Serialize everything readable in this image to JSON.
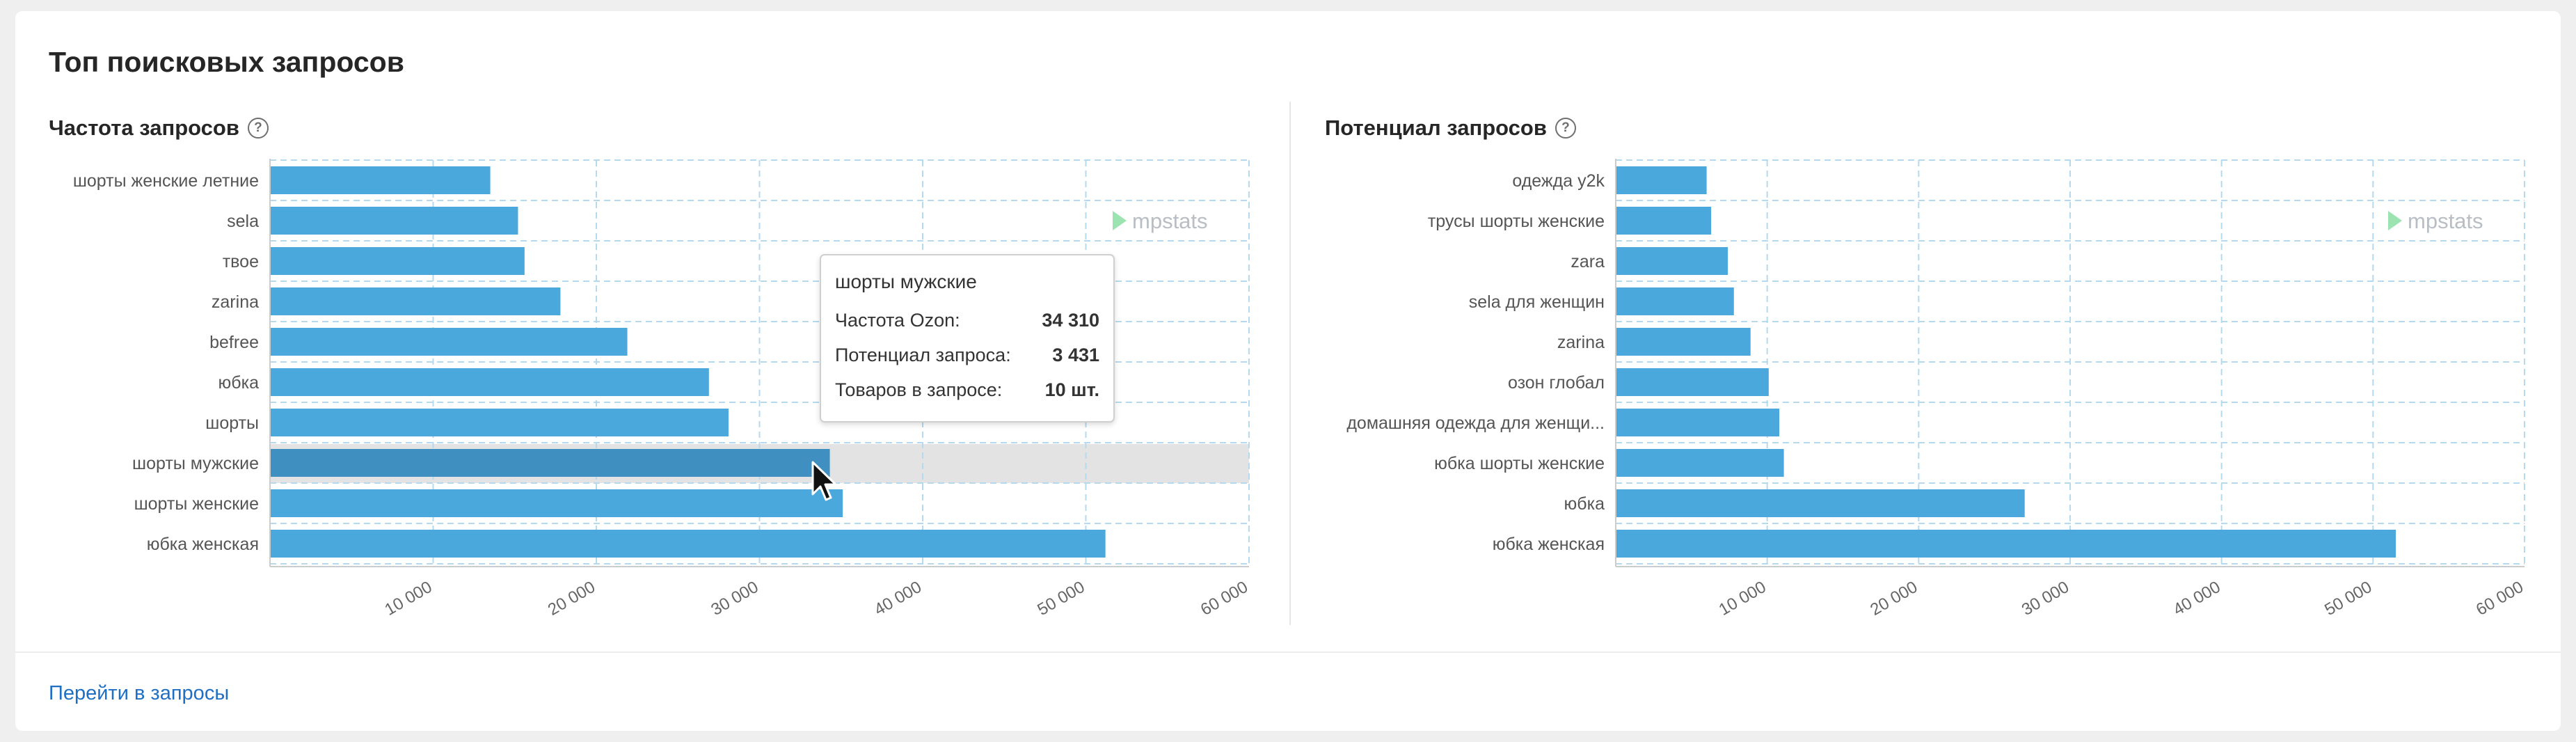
{
  "card": {
    "title": "Топ поисковых запросов",
    "footer_link": "Перейти в запросы"
  },
  "colors": {
    "bar": "#4aa8dc",
    "bar_hover": "#3f8fc0",
    "grid": "#b5d9ef",
    "hover_band": "#e3e3e3",
    "watermark": "#b8bec4"
  },
  "watermark": "mpstats",
  "chart_data": [
    {
      "type": "bar",
      "orientation": "horizontal",
      "title": "Частота запросов",
      "categories": [
        "шорты женские летние",
        "sela",
        "твое",
        "zarina",
        "befree",
        "юбка",
        "шорты",
        "шорты мужские",
        "шорты женские",
        "юбка женская"
      ],
      "values": [
        13500,
        15200,
        15600,
        17800,
        21900,
        26900,
        28100,
        34310,
        35100,
        51200
      ],
      "xlim": [
        0,
        60000
      ],
      "xticks": [
        "10 000",
        "20 000",
        "30 000",
        "40 000",
        "50 000",
        "60 000"
      ],
      "grid": true,
      "highlighted_index": 7
    },
    {
      "type": "bar",
      "orientation": "horizontal",
      "title": "Потенциал запросов",
      "categories": [
        "одежда y2k",
        "трусы шорты женские",
        "zara",
        "sela для женщин",
        "zarina",
        "озон глобал",
        "домашняя одежда для женщи...",
        "юбка шорты женские",
        "юбка",
        "юбка женская"
      ],
      "values": [
        6000,
        6300,
        7400,
        7800,
        8900,
        10100,
        10800,
        11100,
        27000,
        51500
      ],
      "xlim": [
        0,
        60000
      ],
      "xticks": [
        "10 000",
        "20 000",
        "30 000",
        "40 000",
        "50 000",
        "60 000"
      ],
      "grid": true
    }
  ],
  "tooltip": {
    "title": "шорты мужские",
    "rows": [
      {
        "label": "Частота Ozon:",
        "value": "34 310"
      },
      {
        "label": "Потенциал запроса:",
        "value": "3 431"
      },
      {
        "label": "Товаров в запросе:",
        "value": "10 шт."
      }
    ]
  }
}
